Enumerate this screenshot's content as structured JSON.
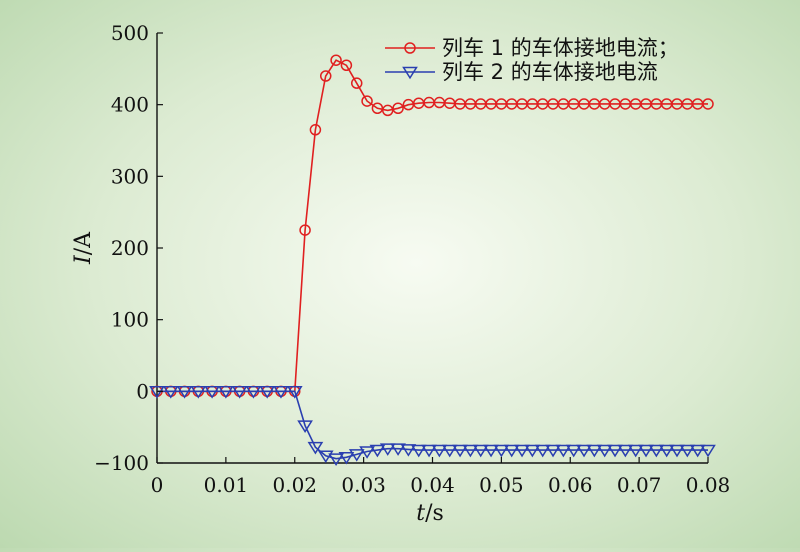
{
  "chart_data": {
    "type": "line",
    "xlabel": "t/s",
    "ylabel": "I/A",
    "xlim": [
      0,
      0.08
    ],
    "ylim": [
      -100,
      500
    ],
    "xticks": [
      0,
      0.01,
      0.02,
      0.03,
      0.04,
      0.05,
      0.06,
      0.07,
      0.08
    ],
    "xtick_labels": [
      "0",
      "0.01",
      "0.02",
      "0.03",
      "0.04",
      "0.05",
      "0.06",
      "0.07",
      "0.08"
    ],
    "yticks": [
      -100,
      0,
      100,
      200,
      300,
      400,
      500
    ],
    "ytick_labels": [
      "−100",
      "0",
      "100",
      "200",
      "300",
      "400",
      "500"
    ],
    "grid": false,
    "legend_position": "top-right",
    "series": [
      {
        "name": "列车 1 的车体接地电流；",
        "color": "#e02020",
        "marker": "circle",
        "x": [
          0,
          0.002,
          0.004,
          0.006,
          0.008,
          0.01,
          0.012,
          0.014,
          0.016,
          0.018,
          0.02,
          0.0215,
          0.023,
          0.0245,
          0.026,
          0.0275,
          0.029,
          0.0305,
          0.032,
          0.0335,
          0.035,
          0.0365,
          0.038,
          0.0395,
          0.041,
          0.0425,
          0.044,
          0.0455,
          0.047,
          0.0485,
          0.05,
          0.0515,
          0.053,
          0.0545,
          0.056,
          0.0575,
          0.059,
          0.0605,
          0.062,
          0.0635,
          0.065,
          0.0665,
          0.068,
          0.0695,
          0.071,
          0.0725,
          0.074,
          0.0755,
          0.077,
          0.0785,
          0.08
        ],
        "y": [
          0,
          0,
          0,
          0,
          0,
          0,
          0,
          0,
          0,
          0,
          0,
          225,
          365,
          440,
          462,
          455,
          430,
          405,
          395,
          392,
          395,
          400,
          402,
          403,
          403,
          402,
          401,
          401,
          401,
          401,
          401,
          401,
          401,
          401,
          401,
          401,
          401,
          401,
          401,
          401,
          401,
          401,
          401,
          401,
          401,
          401,
          401,
          401,
          401,
          401,
          401
        ]
      },
      {
        "name": "列车 2 的车体接地电流",
        "color": "#2a3fb0",
        "marker": "triangle-down",
        "x": [
          0,
          0.002,
          0.004,
          0.006,
          0.008,
          0.01,
          0.012,
          0.014,
          0.016,
          0.018,
          0.02,
          0.0215,
          0.023,
          0.0245,
          0.026,
          0.0275,
          0.029,
          0.0305,
          0.032,
          0.0335,
          0.035,
          0.0365,
          0.038,
          0.0395,
          0.041,
          0.0425,
          0.044,
          0.0455,
          0.047,
          0.0485,
          0.05,
          0.0515,
          0.053,
          0.0545,
          0.056,
          0.0575,
          0.059,
          0.0605,
          0.062,
          0.0635,
          0.065,
          0.0665,
          0.068,
          0.0695,
          0.071,
          0.0725,
          0.074,
          0.0755,
          0.077,
          0.0785,
          0.08
        ],
        "y": [
          0,
          0,
          0,
          0,
          0,
          0,
          0,
          0,
          0,
          0,
          0,
          -48,
          -78,
          -90,
          -94,
          -92,
          -88,
          -84,
          -82,
          -80,
          -80,
          -81,
          -82,
          -82,
          -82,
          -82,
          -82,
          -82,
          -82,
          -82,
          -82,
          -82,
          -82,
          -82,
          -82,
          -82,
          -82,
          -82,
          -82,
          -82,
          -82,
          -82,
          -82,
          -82,
          -82,
          -82,
          -82,
          -82,
          -82,
          -82,
          -82
        ]
      }
    ]
  }
}
